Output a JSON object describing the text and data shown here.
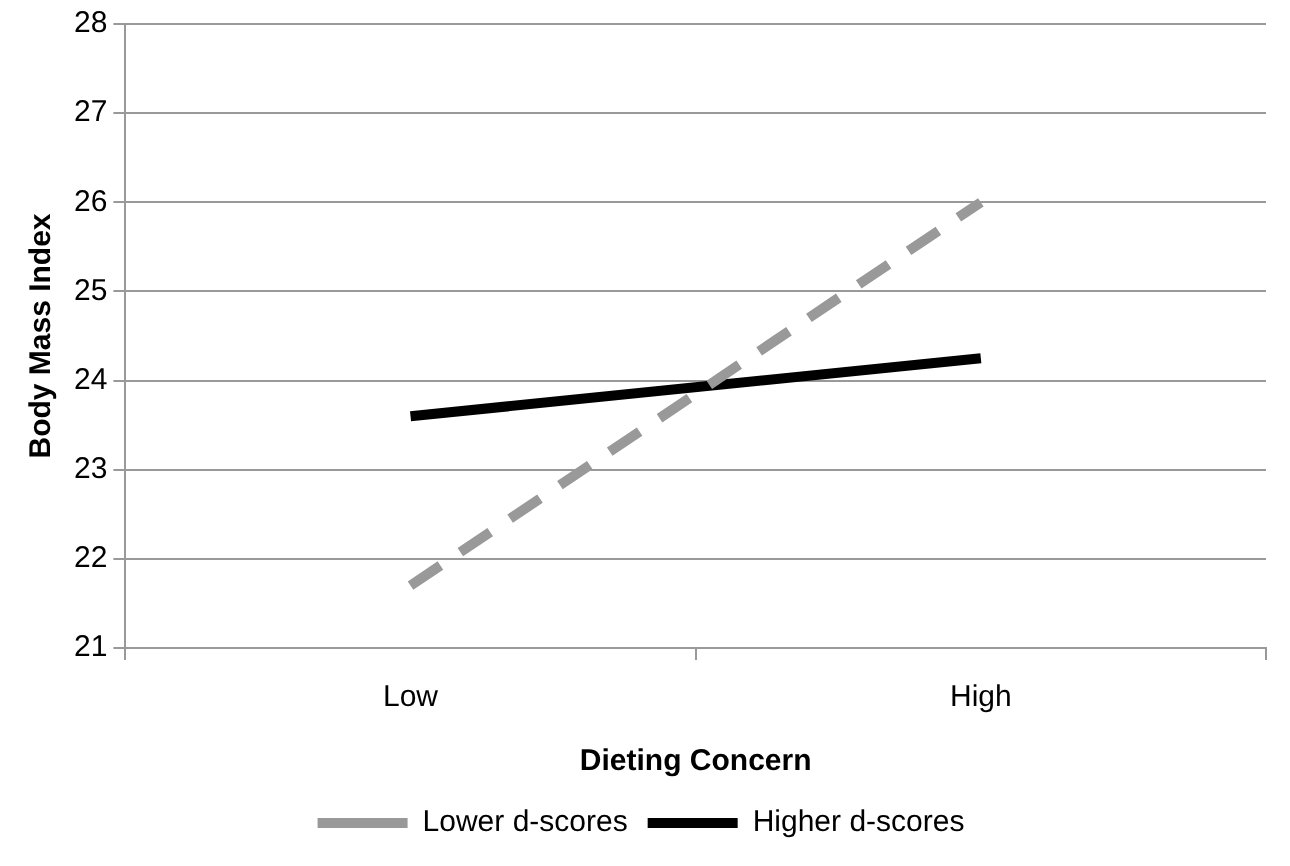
{
  "chart_data": {
    "type": "line",
    "xlabel": "Dieting Concern",
    "ylabel": "Body Mass Index",
    "categories": [
      "Low",
      "High"
    ],
    "series": [
      {
        "name": "Lower d-scores",
        "color": "#999999",
        "values": [
          21.7,
          26.0
        ],
        "line_style": "dashed"
      },
      {
        "name": "Higher d-scores",
        "color": "#000000",
        "values": [
          23.6,
          24.25
        ],
        "line_style": "solid"
      }
    ],
    "ylim": [
      21,
      28
    ],
    "yticks": [
      21,
      22,
      23,
      24,
      25,
      26,
      27,
      28
    ],
    "grid": "y",
    "legend": "bottom",
    "marker": "none"
  }
}
